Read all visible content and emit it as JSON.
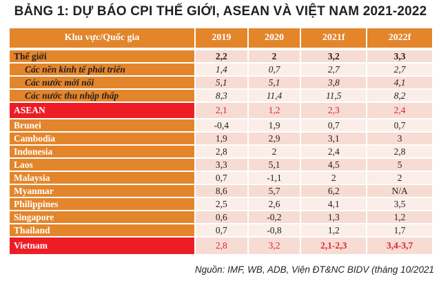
{
  "title": "BẢNG 1: DỰ BÁO CPI THẾ GIỚI, ASEAN VÀ VIỆT NAM 2021-2022",
  "table": {
    "headers": [
      "Khu vực/Quốc gia",
      "2019",
      "2020",
      "2021f",
      "2022f"
    ],
    "rows": [
      {
        "label": "Thế giới",
        "values": [
          "2,2",
          "2",
          "3,2",
          "3,3"
        ]
      },
      {
        "label": "Các nền kinh tế phát triển",
        "values": [
          "1,4",
          "0,7",
          "2,7",
          "2,7"
        ]
      },
      {
        "label": "Các nước mới nổi",
        "values": [
          "5,1",
          "5,1",
          "3,8",
          "4,1"
        ]
      },
      {
        "label": "Các nước thu nhập thấp",
        "values": [
          "8,3",
          "11,4",
          "11,5",
          "8,2"
        ]
      },
      {
        "label": "ASEAN",
        "values": [
          "2,1",
          "1,2",
          "2,3",
          "2,4"
        ]
      },
      {
        "label": "Brunei",
        "values": [
          "-0,4",
          "1,9",
          "0,7",
          "0,7"
        ]
      },
      {
        "label": "Cambodia",
        "values": [
          "1,9",
          "2,9",
          "3,1",
          "3"
        ]
      },
      {
        "label": "Indonesia",
        "values": [
          "2,8",
          "2",
          "2,4",
          "2,8"
        ]
      },
      {
        "label": "Laos",
        "values": [
          "3,3",
          "5,1",
          "4,5",
          "5"
        ]
      },
      {
        "label": "Malaysia",
        "values": [
          "0,7",
          "-1,1",
          "2",
          "2"
        ]
      },
      {
        "label": "Myanmar",
        "values": [
          "8,6",
          "5,7",
          "6,2",
          "N/A"
        ]
      },
      {
        "label": "Philippines",
        "values": [
          "2,5",
          "2,6",
          "4,1",
          "3,5"
        ]
      },
      {
        "label": "Singapore",
        "values": [
          "0,6",
          "-0,2",
          "1,3",
          "1,2"
        ]
      },
      {
        "label": "Thailand",
        "values": [
          "0,7",
          "-0,8",
          "1,2",
          "1,7"
        ]
      },
      {
        "label": "Vietnam",
        "values": [
          "2,8",
          "3,2",
          "2,1-2,3",
          "3,4-3,7"
        ]
      }
    ]
  },
  "source": "Nguồn: IMF, WB, ADB, Viện ĐT&NC BIDV (tháng 10/2021",
  "colors": {
    "orange": "#E3852B",
    "red": "#EE1C25",
    "cell_light": "#FBEDE8",
    "cell_dark": "#F6DCD3"
  }
}
